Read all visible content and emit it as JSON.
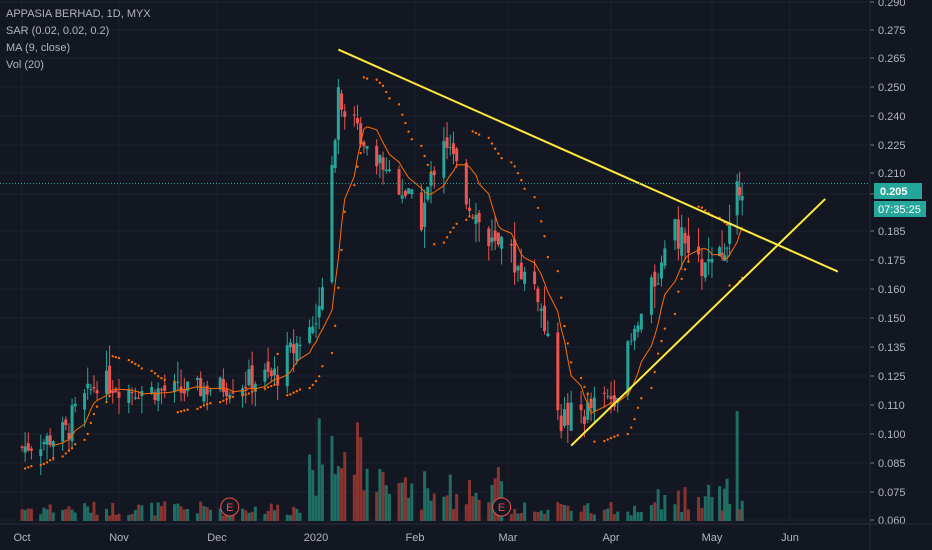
{
  "legend": {
    "symbol": "APPASIA BERHAD, 1D, MYX",
    "sar": "SAR (0.02, 0.02, 0.2)",
    "ma": "MA (9, close)",
    "vol": "Vol (20)"
  },
  "price_label": "0.205",
  "countdown": "07:35:25",
  "colors": {
    "up": "#26a69a",
    "down": "#ef5350",
    "ma": "#ff6d00",
    "sar": "#ff6d00",
    "trend": "#ffeb3b",
    "bg": "#131722"
  },
  "chart_data": {
    "type": "candlestick",
    "y_axis": {
      "min": 0.06,
      "max": 0.29,
      "ticks": [
        0.06,
        0.075,
        0.085,
        0.1,
        0.11,
        0.125,
        0.135,
        0.15,
        0.16,
        0.175,
        0.185,
        0.2,
        0.21,
        0.225,
        0.24,
        0.25,
        0.265,
        0.275,
        0.29
      ]
    },
    "x_axis": {
      "labels": [
        "Oct",
        "Nov",
        "Dec",
        "2020",
        "Feb",
        "Mar",
        "Apr",
        "May",
        "Jun"
      ]
    },
    "earnings_markers": [
      {
        "label": "E",
        "date": "2019-12-05"
      },
      {
        "label": "E",
        "date": "2020-02-28"
      }
    ],
    "last_price": 0.205,
    "price_ohlc_approx": [
      {
        "date": "2019-10-01",
        "close": 0.093
      },
      {
        "date": "2019-10-15",
        "close": 0.1
      },
      {
        "date": "2019-10-25",
        "close": 0.122
      },
      {
        "date": "2019-11-05",
        "close": 0.118
      },
      {
        "date": "2019-11-20",
        "close": 0.117
      },
      {
        "date": "2019-12-05",
        "close": 0.12
      },
      {
        "date": "2019-12-20",
        "close": 0.125
      },
      {
        "date": "2020-01-02",
        "close": 0.15
      },
      {
        "date": "2020-01-08",
        "close": 0.25
      },
      {
        "date": "2020-01-15",
        "close": 0.23
      },
      {
        "date": "2020-01-22",
        "close": 0.215
      },
      {
        "date": "2020-02-03",
        "close": 0.19
      },
      {
        "date": "2020-02-10",
        "close": 0.23
      },
      {
        "date": "2020-02-17",
        "close": 0.2
      },
      {
        "date": "2020-02-24",
        "close": 0.18
      },
      {
        "date": "2020-03-02",
        "close": 0.175
      },
      {
        "date": "2020-03-10",
        "close": 0.16
      },
      {
        "date": "2020-03-17",
        "close": 0.105
      },
      {
        "date": "2020-03-25",
        "close": 0.108
      },
      {
        "date": "2020-04-02",
        "close": 0.115
      },
      {
        "date": "2020-04-10",
        "close": 0.15
      },
      {
        "date": "2020-04-20",
        "close": 0.185
      },
      {
        "date": "2020-04-28",
        "close": 0.17
      },
      {
        "date": "2020-05-05",
        "close": 0.175
      },
      {
        "date": "2020-05-11",
        "close": 0.205
      }
    ],
    "trendlines": [
      {
        "name": "descending resistance",
        "from": {
          "date": "2020-01-08",
          "price": 0.268
        },
        "to": {
          "date": "2020-06-20",
          "price": 0.169
        }
      },
      {
        "name": "ascending support",
        "from": {
          "date": "2020-03-20",
          "price": 0.094
        },
        "to": {
          "date": "2020-06-15",
          "price": 0.198
        }
      }
    ]
  }
}
